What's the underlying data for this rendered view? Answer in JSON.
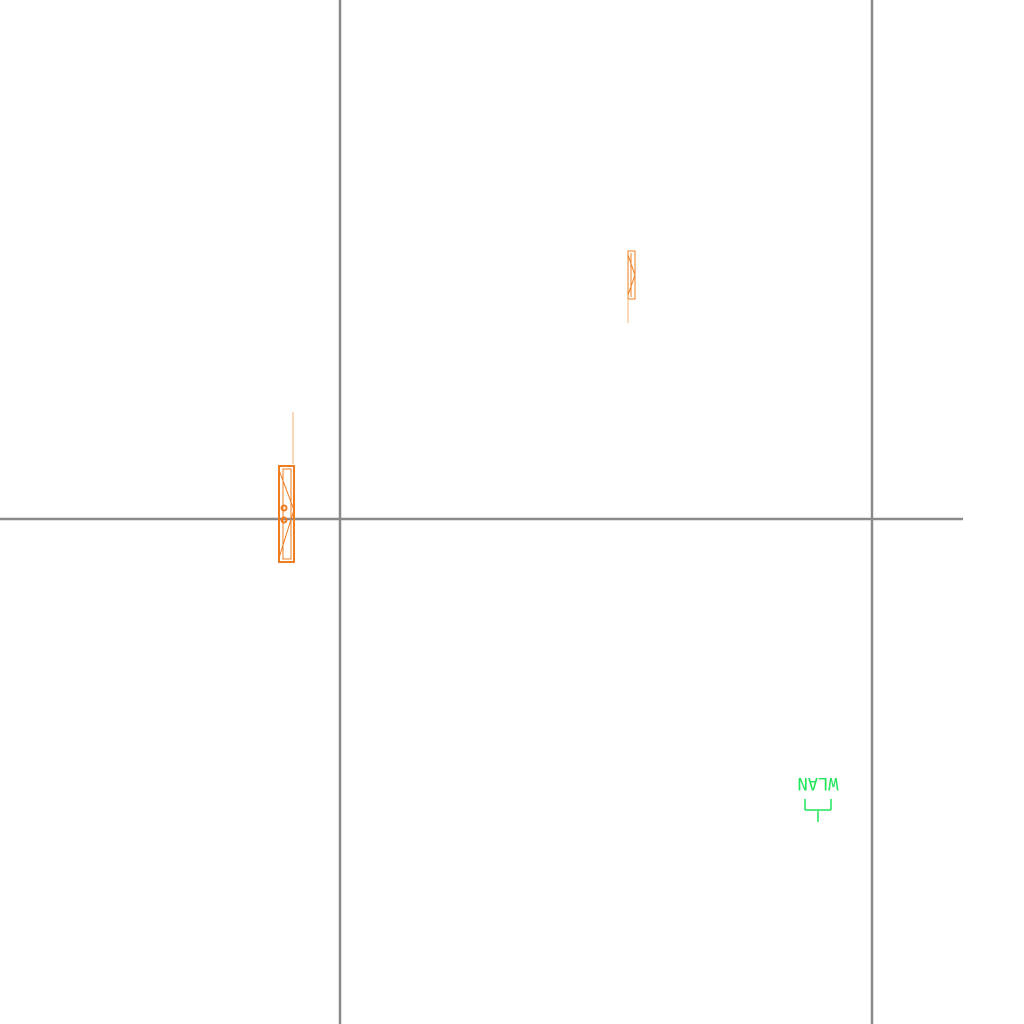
{
  "drawing": {
    "background": "#ffffff",
    "colors": {
      "walls": "#8a8a8a",
      "fixtures": "#ef7d22",
      "wlan_symbol": "#1fe55a"
    },
    "symbols": {
      "wlan": {
        "label": "WLAN",
        "orientation": "rotated-180",
        "icon": "antenna-symbol-icon"
      },
      "window_left": {
        "icon": "window-fixture-icon"
      },
      "window_top": {
        "icon": "window-fixture-icon"
      }
    }
  }
}
